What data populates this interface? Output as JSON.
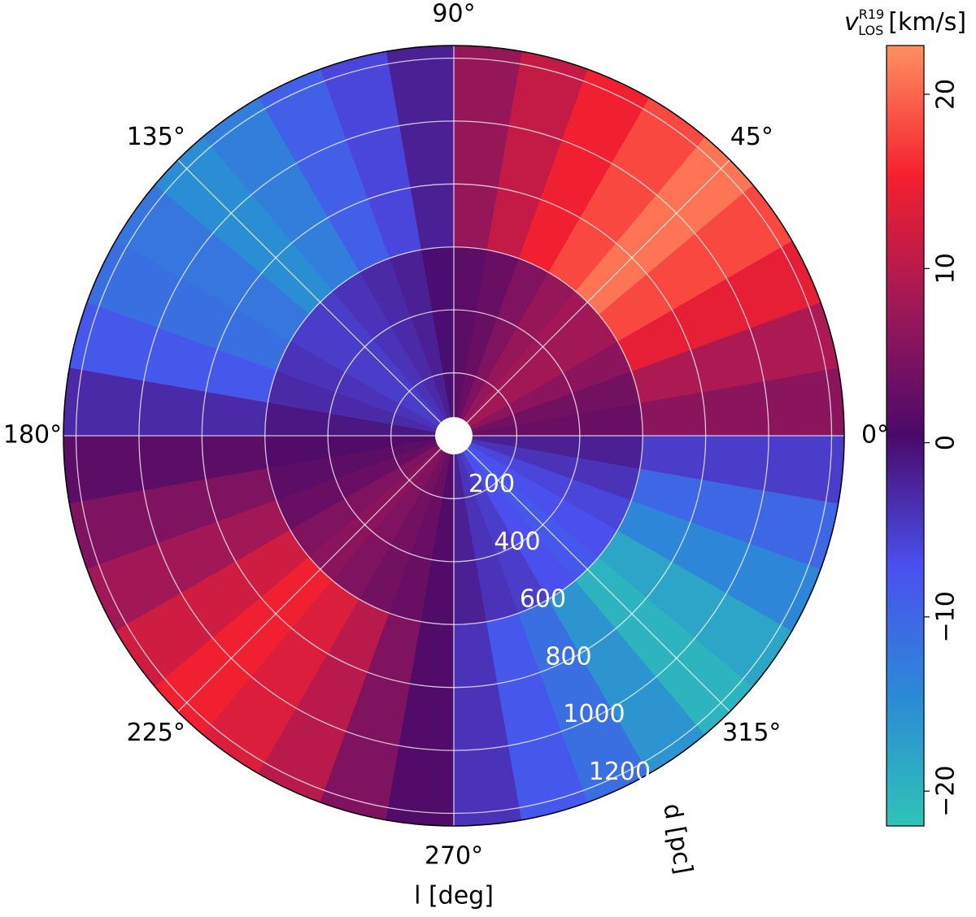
{
  "chart_data": {
    "type": "polar_heatmap",
    "theta_label": "l [deg]",
    "r_label": "d [pc]",
    "colorbar_label": {
      "symbol": "v",
      "sup": "R19",
      "sub": "LOS",
      "unit": "[km/s]"
    },
    "theta_edges": [
      0,
      10,
      20,
      30,
      40,
      50,
      60,
      70,
      80,
      90,
      100,
      110,
      120,
      130,
      140,
      150,
      160,
      170,
      180,
      190,
      200,
      210,
      220,
      230,
      240,
      250,
      260,
      270,
      280,
      290,
      300,
      310,
      320,
      330,
      340,
      350,
      360
    ],
    "r_edges": [
      60,
      600,
      1240
    ],
    "rlim": [
      0,
      1240
    ],
    "rticks": [
      200,
      400,
      600,
      800,
      1000,
      1200
    ],
    "thetaticks": [
      {
        "value": 0,
        "label": "0°"
      },
      {
        "value": 45,
        "label": "45°"
      },
      {
        "value": 90,
        "label": "90°"
      },
      {
        "value": 135,
        "label": "135°"
      },
      {
        "value": 180,
        "label": "180°"
      },
      {
        "value": 225,
        "label": "225°"
      },
      {
        "value": 270,
        "label": "270°"
      },
      {
        "value": 315,
        "label": "315°"
      }
    ],
    "values": [
      [
        3,
        6
      ],
      [
        4,
        9
      ],
      [
        6,
        14
      ],
      [
        8,
        18
      ],
      [
        8,
        21
      ],
      [
        7,
        18
      ],
      [
        5,
        15
      ],
      [
        3,
        11
      ],
      [
        2,
        7
      ],
      [
        0,
        -2
      ],
      [
        -2,
        -6
      ],
      [
        -3,
        -9
      ],
      [
        -4,
        -13
      ],
      [
        -5,
        -15
      ],
      [
        -5,
        -12
      ],
      [
        -4,
        -11
      ],
      [
        -3,
        -8
      ],
      [
        -1,
        -3
      ],
      [
        1,
        2
      ],
      [
        2,
        5
      ],
      [
        3,
        8
      ],
      [
        5,
        12
      ],
      [
        6,
        15
      ],
      [
        5,
        13
      ],
      [
        4,
        10
      ],
      [
        3,
        5
      ],
      [
        1,
        1
      ],
      [
        -2,
        -4
      ],
      [
        -4,
        -8
      ],
      [
        -5,
        -11
      ],
      [
        -7,
        -16
      ],
      [
        -8,
        -20
      ],
      [
        -7,
        -18
      ],
      [
        -6,
        -14
      ],
      [
        -4,
        -10
      ],
      [
        -2,
        -5
      ]
    ],
    "clim": [
      -22,
      22.8
    ],
    "cticks": [
      {
        "value": -20,
        "label": "−20"
      },
      {
        "value": -10,
        "label": "−10"
      },
      {
        "value": 0,
        "label": "0"
      },
      {
        "value": 10,
        "label": "10"
      },
      {
        "value": 20,
        "label": "20"
      }
    ],
    "colormap": [
      "#2ec4b6",
      "#2b8ad6",
      "#4a50ee",
      "#4a0a6a",
      "#a01858",
      "#f5202e",
      "#ff9060"
    ],
    "grid": true
  }
}
